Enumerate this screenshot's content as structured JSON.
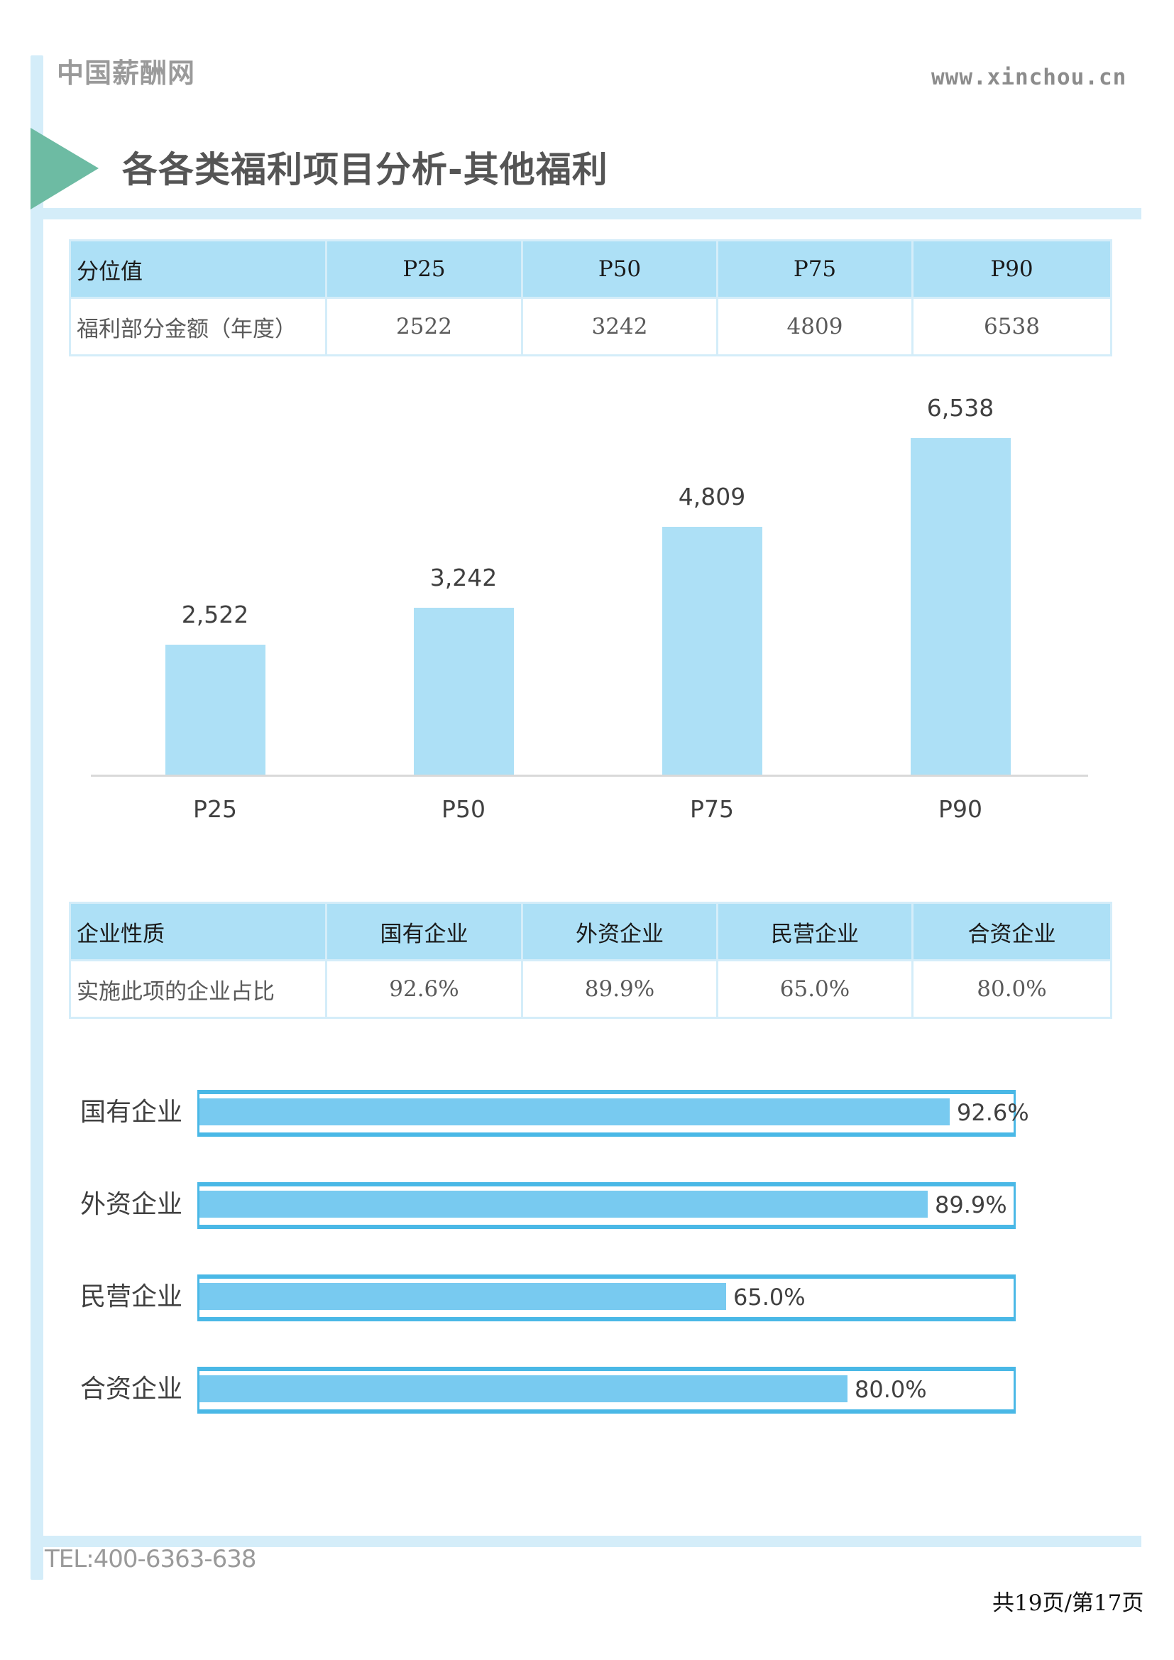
{
  "header": {
    "logo_text": "中国薪酬网",
    "site_url": "www.xinchou.cn",
    "page_title": "各各类福利项目分析-其他福利"
  },
  "colors": {
    "accent_triangle": "#6dbba3",
    "frame_band": "#d4edf9",
    "table_header_bg": "#ade0f6",
    "bar_fill": "#ade0f6",
    "progress_border": "#4ab8e6",
    "progress_fill": "#78caf0"
  },
  "percentile_table": {
    "header": [
      "分位值",
      "P25",
      "P50",
      "P75",
      "P90"
    ],
    "row": [
      "福利部分金额（年度）",
      "2522",
      "3242",
      "4809",
      "6538"
    ]
  },
  "enterprise_table": {
    "header": [
      "企业性质",
      "国有企业",
      "外资企业",
      "民营企业",
      "合资企业"
    ],
    "row": [
      "实施此项的企业占比",
      "92.6%",
      "89.9%",
      "65.0%",
      "80.0%"
    ]
  },
  "chart_data": [
    {
      "type": "bar",
      "title": "",
      "categories": [
        "P25",
        "P50",
        "P75",
        "P90"
      ],
      "values": [
        2522,
        3242,
        4809,
        6538
      ],
      "data_labels": [
        "2,522",
        "3,242",
        "4,809",
        "6,538"
      ],
      "xlabel": "",
      "ylabel": "",
      "ylim": [
        0,
        6538
      ],
      "grid": false,
      "legend": "none"
    },
    {
      "type": "bar",
      "orientation": "horizontal",
      "title": "",
      "categories": [
        "国有企业",
        "外资企业",
        "民营企业",
        "合资企业"
      ],
      "values": [
        92.6,
        89.9,
        65.0,
        80.0
      ],
      "data_labels": [
        "92.6%",
        "89.9%",
        "65.0%",
        "80.0%"
      ],
      "xlim": [
        0,
        100
      ],
      "unit": "%",
      "grid": false,
      "legend": "none"
    }
  ],
  "footer": {
    "tel": "TEL:400-6363-638",
    "page_indicator": "共19页/第17页"
  }
}
